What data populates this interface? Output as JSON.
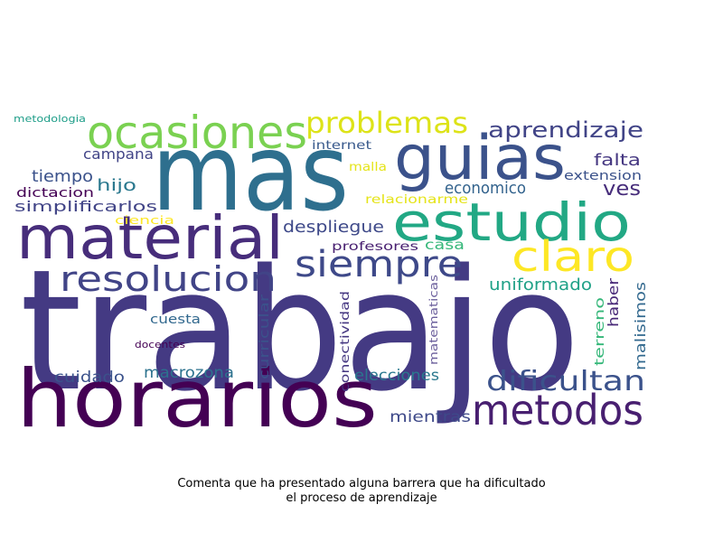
{
  "caption": {
    "line1": "Comenta que ha presentado alguna barrera que ha dificultado",
    "line2": "el proceso de aprendizaje"
  },
  "words": [
    {
      "text": "trabajo",
      "color": "#443a83"
    },
    {
      "text": "mas",
      "color": "#2e6f8e"
    },
    {
      "text": "horarios",
      "color": "#440154"
    },
    {
      "text": "material",
      "color": "#472d7b"
    },
    {
      "text": "estudio",
      "color": "#22a884"
    },
    {
      "text": "guias",
      "color": "#3b528b"
    },
    {
      "text": "ocasiones",
      "color": "#7ad151"
    },
    {
      "text": "metodos",
      "color": "#481f70"
    },
    {
      "text": "claro",
      "color": "#fde725"
    },
    {
      "text": "siempre",
      "color": "#3e4989"
    },
    {
      "text": "resolucion",
      "color": "#414487"
    },
    {
      "text": "problemas",
      "color": "#dde318"
    },
    {
      "text": "dificultan",
      "color": "#3b528b"
    },
    {
      "text": "aprendizaje",
      "color": "#414487"
    },
    {
      "text": "despliegue",
      "color": "#3e4989"
    },
    {
      "text": "uniformado",
      "color": "#1fa187"
    },
    {
      "text": "ves",
      "color": "#472d7b"
    },
    {
      "text": "falta",
      "color": "#453781"
    },
    {
      "text": "economico",
      "color": "#33638d"
    },
    {
      "text": "campana",
      "color": "#414487"
    },
    {
      "text": "hijo",
      "color": "#2a788e"
    },
    {
      "text": "tiempo",
      "color": "#3b528b"
    },
    {
      "text": "simplificarlos",
      "color": "#414487"
    },
    {
      "text": "dictacion",
      "color": "#440154"
    },
    {
      "text": "ciencia",
      "color": "#fde725"
    },
    {
      "text": "metodologia",
      "color": "#1f9e89"
    },
    {
      "text": "internet",
      "color": "#38598c"
    },
    {
      "text": "malla",
      "color": "#e5e419"
    },
    {
      "text": "relacionarme",
      "color": "#e5e419"
    },
    {
      "text": "extension",
      "color": "#3b528b"
    },
    {
      "text": "casa",
      "color": "#35b779"
    },
    {
      "text": "profesores",
      "color": "#481f70"
    },
    {
      "text": "macrozona",
      "color": "#2c728e"
    },
    {
      "text": "cuidado",
      "color": "#3b528b"
    },
    {
      "text": "elecciones",
      "color": "#2a788e"
    },
    {
      "text": "mientras",
      "color": "#3e4989"
    },
    {
      "text": "cuesta",
      "color": "#31688e"
    },
    {
      "text": "docentes",
      "color": "#440154"
    },
    {
      "text": "curricular",
      "color": "#3b528b"
    },
    {
      "text": "conectividad",
      "color": "#453781"
    },
    {
      "text": "matematicas",
      "color": "#6b5f9c"
    },
    {
      "text": "terreno",
      "color": "#35b779"
    },
    {
      "text": "haber",
      "color": "#482878"
    },
    {
      "text": "malisimos",
      "color": "#31688e"
    }
  ]
}
